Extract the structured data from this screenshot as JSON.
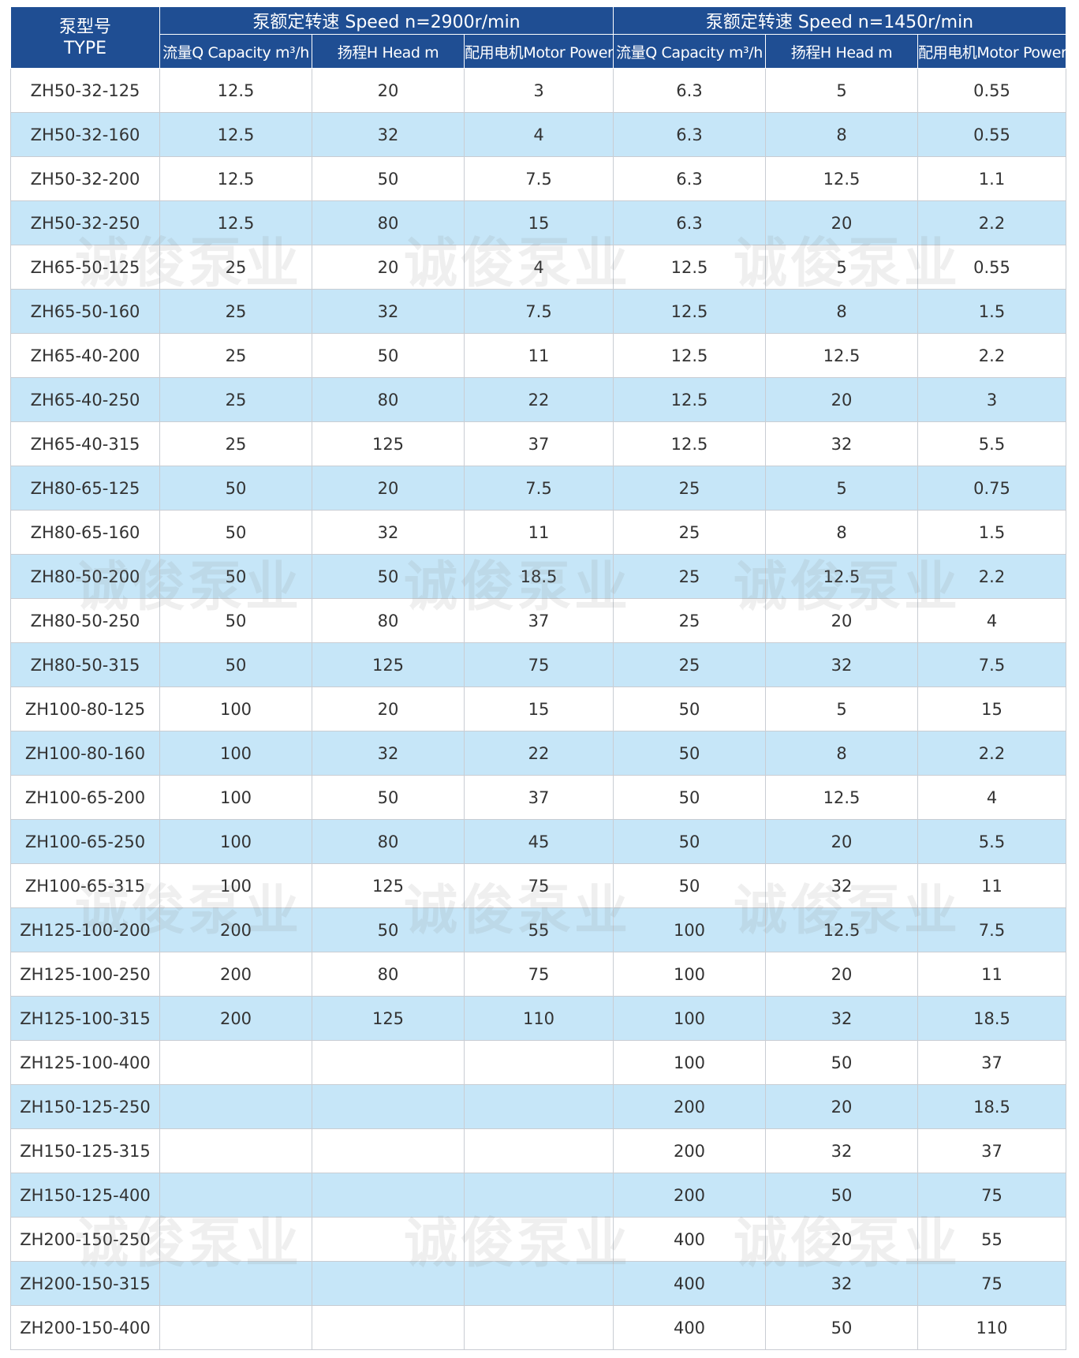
{
  "header": {
    "type_label_cn": "泵型号",
    "type_label_en": "TYPE",
    "group1_title": "泵额定转速 Speed n=2900r/min",
    "group2_title": "泵额定转速 Speed n=1450r/min",
    "col_capacity": "流量Q Capacity m³/h",
    "col_head": "扬程H Head m",
    "col_power": "配用电机Motor Power kw"
  },
  "rows": [
    [
      "ZH50-32-125",
      "12.5",
      "20",
      "3",
      "6.3",
      "5",
      "0.55"
    ],
    [
      "ZH50-32-160",
      "12.5",
      "32",
      "4",
      "6.3",
      "8",
      "0.55"
    ],
    [
      "ZH50-32-200",
      "12.5",
      "50",
      "7.5",
      "6.3",
      "12.5",
      "1.1"
    ],
    [
      "ZH50-32-250",
      "12.5",
      "80",
      "15",
      "6.3",
      "20",
      "2.2"
    ],
    [
      "ZH65-50-125",
      "25",
      "20",
      "4",
      "12.5",
      "5",
      "0.55"
    ],
    [
      "ZH65-50-160",
      "25",
      "32",
      "7.5",
      "12.5",
      "8",
      "1.5"
    ],
    [
      "ZH65-40-200",
      "25",
      "50",
      "11",
      "12.5",
      "12.5",
      "2.2"
    ],
    [
      "ZH65-40-250",
      "25",
      "80",
      "22",
      "12.5",
      "20",
      "3"
    ],
    [
      "ZH65-40-315",
      "25",
      "125",
      "37",
      "12.5",
      "32",
      "5.5"
    ],
    [
      "ZH80-65-125",
      "50",
      "20",
      "7.5",
      "25",
      "5",
      "0.75"
    ],
    [
      "ZH80-65-160",
      "50",
      "32",
      "11",
      "25",
      "8",
      "1.5"
    ],
    [
      "ZH80-50-200",
      "50",
      "50",
      "18.5",
      "25",
      "12.5",
      "2.2"
    ],
    [
      "ZH80-50-250",
      "50",
      "80",
      "37",
      "25",
      "20",
      "4"
    ],
    [
      "ZH80-50-315",
      "50",
      "125",
      "75",
      "25",
      "32",
      "7.5"
    ],
    [
      "ZH100-80-125",
      "100",
      "20",
      "15",
      "50",
      "5",
      "15"
    ],
    [
      "ZH100-80-160",
      "100",
      "32",
      "22",
      "50",
      "8",
      "2.2"
    ],
    [
      "ZH100-65-200",
      "100",
      "50",
      "37",
      "50",
      "12.5",
      "4"
    ],
    [
      "ZH100-65-250",
      "100",
      "80",
      "45",
      "50",
      "20",
      "5.5"
    ],
    [
      "ZH100-65-315",
      "100",
      "125",
      "75",
      "50",
      "32",
      "11"
    ],
    [
      "ZH125-100-200",
      "200",
      "50",
      "55",
      "100",
      "12.5",
      "7.5"
    ],
    [
      "ZH125-100-250",
      "200",
      "80",
      "75",
      "100",
      "20",
      "11"
    ],
    [
      "ZH125-100-315",
      "200",
      "125",
      "110",
      "100",
      "32",
      "18.5"
    ],
    [
      "ZH125-100-400",
      "",
      "",
      "",
      "100",
      "50",
      "37"
    ],
    [
      "ZH150-125-250",
      "",
      "",
      "",
      "200",
      "20",
      "18.5"
    ],
    [
      "ZH150-125-315",
      "",
      "",
      "",
      "200",
      "32",
      "37"
    ],
    [
      "ZH150-125-400",
      "",
      "",
      "",
      "200",
      "50",
      "75"
    ],
    [
      "ZH200-150-250",
      "",
      "",
      "",
      "400",
      "20",
      "55"
    ],
    [
      "ZH200-150-315",
      "",
      "",
      "",
      "400",
      "32",
      "75"
    ],
    [
      "ZH200-150-400",
      "",
      "",
      "",
      "400",
      "50",
      "110"
    ]
  ],
  "watermark_text": "诚俊泵业"
}
